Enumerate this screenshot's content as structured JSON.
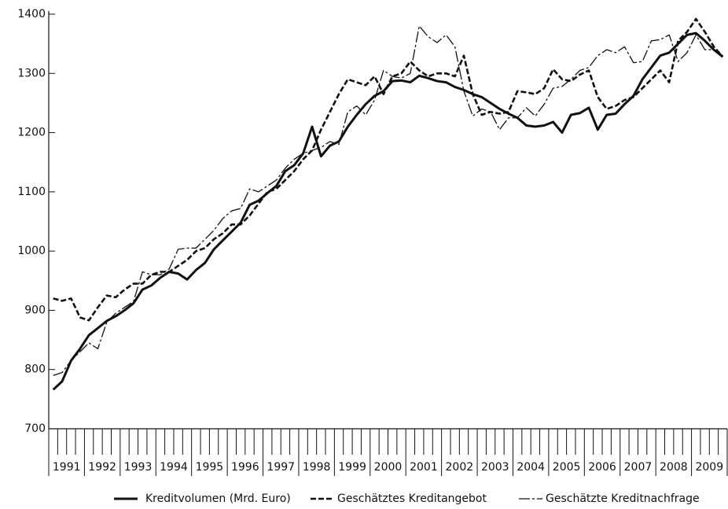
{
  "chart_data": {
    "type": "line",
    "categories": [
      "1991",
      null,
      null,
      null,
      "1992",
      null,
      null,
      null,
      "1993",
      null,
      null,
      null,
      "1994",
      null,
      null,
      null,
      "1995",
      null,
      null,
      null,
      "1996",
      null,
      null,
      null,
      "1997",
      null,
      null,
      null,
      "1998",
      null,
      null,
      null,
      "1999",
      null,
      null,
      null,
      "2000",
      null,
      null,
      null,
      "2001",
      null,
      null,
      null,
      "2002",
      null,
      null,
      null,
      "2003",
      null,
      null,
      null,
      "2004",
      null,
      null,
      null,
      "2005",
      null,
      null,
      null,
      "2006",
      null,
      null,
      null,
      "2007",
      null,
      null,
      null,
      "2008",
      null,
      null,
      null,
      "2009",
      null,
      null,
      null
    ],
    "ylim": [
      700,
      1400
    ],
    "yticks": [
      700,
      800,
      900,
      1000,
      1100,
      1200,
      1300,
      1400
    ],
    "series": [
      {
        "name": "Kreditvolumen (Mrd. Euro)",
        "color": "#111111",
        "style": "solid",
        "values": [
          766,
          780,
          815,
          835,
          858,
          870,
          882,
          890,
          900,
          912,
          935,
          942,
          955,
          965,
          962,
          952,
          968,
          980,
          1003,
          1018,
          1033,
          1048,
          1078,
          1085,
          1098,
          1110,
          1135,
          1145,
          1165,
          1210,
          1160,
          1178,
          1185,
          1210,
          1230,
          1248,
          1262,
          1270,
          1287,
          1288,
          1285,
          1296,
          1292,
          1287,
          1285,
          1277,
          1272,
          1265,
          1260,
          1250,
          1240,
          1232,
          1225,
          1212,
          1210,
          1212,
          1218,
          1200,
          1230,
          1233,
          1242,
          1205,
          1230,
          1232,
          1248,
          1262,
          1290,
          1310,
          1330,
          1335,
          1350,
          1365,
          1368,
          1355,
          1340,
          1328
        ]
      },
      {
        "name": "Geschätztes Kreditangebot",
        "color": "#111111",
        "style": "dashed",
        "values": [
          920,
          916,
          920,
          888,
          883,
          905,
          925,
          922,
          935,
          945,
          945,
          960,
          965,
          965,
          975,
          985,
          1000,
          1005,
          1020,
          1030,
          1045,
          1045,
          1060,
          1080,
          1100,
          1105,
          1120,
          1135,
          1155,
          1170,
          1205,
          1235,
          1265,
          1290,
          1285,
          1280,
          1295,
          1265,
          1295,
          1300,
          1320,
          1305,
          1295,
          1300,
          1300,
          1295,
          1330,
          1265,
          1230,
          1235,
          1232,
          1235,
          1270,
          1268,
          1265,
          1275,
          1307,
          1290,
          1287,
          1298,
          1305,
          1260,
          1240,
          1245,
          1255,
          1260,
          1275,
          1290,
          1305,
          1285,
          1355,
          1370,
          1392,
          1370,
          1345,
          1328
        ]
      },
      {
        "name": "Geschätzte Kreditnachfrage",
        "color": "#111111",
        "style": "dashdot",
        "values": [
          790,
          795,
          815,
          830,
          845,
          835,
          880,
          895,
          905,
          915,
          965,
          960,
          960,
          970,
          1003,
          1005,
          1005,
          1020,
          1035,
          1055,
          1068,
          1072,
          1105,
          1100,
          1110,
          1120,
          1140,
          1155,
          1165,
          1170,
          1175,
          1185,
          1180,
          1235,
          1245,
          1230,
          1255,
          1305,
          1295,
          1292,
          1300,
          1380,
          1362,
          1352,
          1365,
          1345,
          1270,
          1228,
          1240,
          1235,
          1205,
          1225,
          1225,
          1242,
          1228,
          1248,
          1275,
          1278,
          1290,
          1305,
          1310,
          1330,
          1340,
          1335,
          1345,
          1318,
          1320,
          1355,
          1357,
          1365,
          1320,
          1335,
          1365,
          1340,
          1340,
          1330
        ]
      }
    ]
  }
}
